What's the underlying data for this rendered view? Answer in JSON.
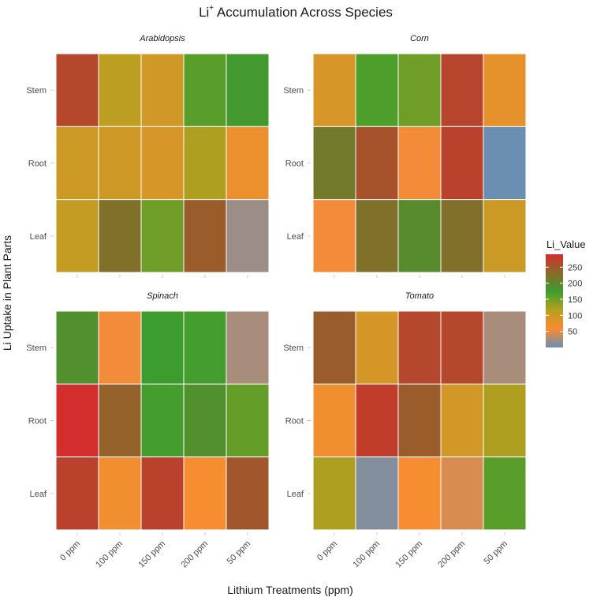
{
  "chart_data": {
    "type": "heatmap",
    "title_main": "Li",
    "title_sup": "+",
    "title_rest": " Accumulation Across Species",
    "xlabel": "Lithium Treatments (ppm)",
    "ylabel": "Li Uptake in Plant Parts",
    "x_categories": [
      "0 ppm",
      "100 ppm",
      "150 ppm",
      "200 ppm",
      "50 ppm"
    ],
    "y_categories": [
      "Stem",
      "Root",
      "Leaf"
    ],
    "legend": {
      "title": "Li_Value",
      "ticks": [
        50,
        100,
        150,
        200,
        250
      ],
      "range": [
        0,
        290
      ],
      "colors": [
        "#6b8eb3",
        "#f98c32",
        "#b89f1f",
        "#3b9e2e",
        "#8a6a2a",
        "#d32d2d"
      ]
    },
    "facets": [
      {
        "name": "Arabidopsis",
        "values": {
          "Stem": [
            265,
            112,
            95,
            160,
            180
          ],
          "Root": [
            98,
            96,
            88,
            120,
            70
          ],
          "Leaf": [
            105,
            225,
            150,
            245,
            20
          ]
        }
      },
      {
        "name": "Corn",
        "values": {
          "Stem": [
            88,
            165,
            150,
            268,
            75
          ],
          "Root": [
            215,
            255,
            55,
            270,
            0
          ],
          "Leaf": [
            55,
            225,
            195,
            225,
            100
          ]
        }
      },
      {
        "name": "Spinach",
        "values": {
          "Stem": [
            190,
            55,
            175,
            170,
            25
          ],
          "Root": [
            290,
            240,
            170,
            190,
            155
          ],
          "Leaf": [
            270,
            65,
            270,
            60,
            250
          ]
        }
      },
      {
        "name": "Tomato",
        "values": {
          "Stem": [
            245,
            90,
            265,
            265,
            25
          ],
          "Root": [
            65,
            275,
            245,
            92,
            120
          ],
          "Leaf": [
            120,
            10,
            60,
            45,
            160
          ]
        }
      }
    ]
  }
}
